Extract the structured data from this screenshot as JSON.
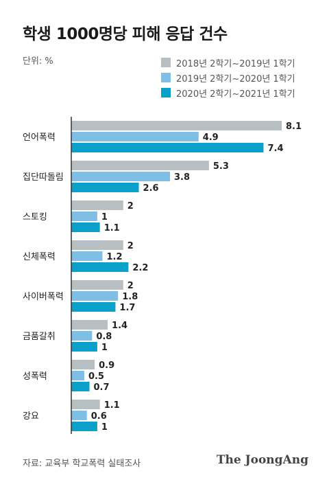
{
  "chart_data": {
    "type": "bar",
    "orientation": "horizontal",
    "title": "학생 1000명당 피해 응답 건수",
    "unit_label": "단위: %",
    "categories": [
      "언어폭력",
      "집단따돌림",
      "스토킹",
      "신체폭력",
      "사이버폭력",
      "금품갈취",
      "성폭력",
      "강요"
    ],
    "series": [
      {
        "name": "2018년 2학기~2019년 1학기",
        "color": "#b8bfc3",
        "values": [
          8.1,
          5.3,
          2,
          2,
          2,
          1.4,
          0.9,
          1.1
        ]
      },
      {
        "name": "2019년 2학기~2020년 1학기",
        "color": "#7fbfe6",
        "values": [
          4.9,
          3.8,
          1,
          1.2,
          1.8,
          0.8,
          0.5,
          0.6
        ]
      },
      {
        "name": "2020년 2학기~2021년 1학기",
        "color": "#0ba0c9",
        "values": [
          7.4,
          2.6,
          1.1,
          2.2,
          1.7,
          1,
          0.7,
          1
        ]
      }
    ],
    "xlim": [
      0,
      8.1
    ],
    "grid": false,
    "legend_position": "top-right",
    "source": "자료: 교육부 학교폭력 실태조사",
    "brand": "The JoongAng"
  }
}
